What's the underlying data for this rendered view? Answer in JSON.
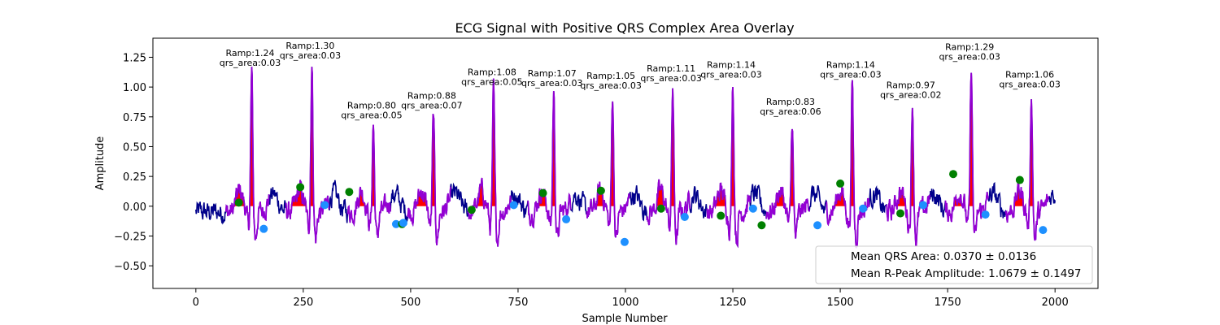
{
  "chart_data": {
    "type": "line",
    "title": "ECG Signal with Positive QRS Complex Area Overlay",
    "xlabel": "Sample Number",
    "ylabel": "Amplitude",
    "xlim": [
      -100,
      2100
    ],
    "ylim": [
      -0.69,
      1.41
    ],
    "xticks": [
      0,
      250,
      500,
      750,
      1000,
      1250,
      1500,
      1750,
      2000
    ],
    "yticks": [
      -0.5,
      -0.25,
      0.0,
      0.25,
      0.5,
      0.75,
      1.0,
      1.25
    ],
    "ytick_labels": [
      "−0.50",
      "−0.25",
      "0.00",
      "0.25",
      "0.50",
      "0.75",
      "1.00",
      "1.25"
    ],
    "colors": {
      "signal": "#00008b",
      "qrs_segment": "#9400d3",
      "area_fill": "#ff0000",
      "q_marker": "#008000",
      "s_marker": "#1e90ff"
    },
    "beats": [
      {
        "r_x": 130,
        "r_amp": 1.24,
        "q": [
          100,
          0.03
        ],
        "s": [
          158,
          -0.19
        ],
        "qrs_area": 0.03,
        "ramp_label": "Ramp:1.24",
        "area_label": "qrs_area:0.03"
      },
      {
        "r_x": 270,
        "r_amp": 1.3,
        "q": [
          243,
          0.16
        ],
        "s": [
          300,
          0.01
        ],
        "qrs_area": 0.03,
        "ramp_label": "Ramp:1.30",
        "area_label": "qrs_area:0.03"
      },
      {
        "r_x": 413,
        "r_amp": 0.8,
        "q": [
          357,
          0.12
        ],
        "s": [
          466,
          -0.15
        ],
        "qrs_area": 0.05,
        "ramp_label": "Ramp:0.80",
        "area_label": "qrs_area:0.05"
      },
      {
        "r_x": 553,
        "r_amp": 0.88,
        "q": [
          480,
          -0.15
        ],
        "s": [
          483,
          -0.14
        ],
        "qrs_area": 0.07,
        "ramp_label": "Ramp:0.88",
        "area_label": "qrs_area:0.07"
      },
      {
        "r_x": 693,
        "r_amp": 1.08,
        "q": [
          642,
          -0.03
        ],
        "s": [
          740,
          0.01
        ],
        "qrs_area": 0.05,
        "ramp_label": "Ramp:1.08",
        "area_label": "qrs_area:0.05"
      },
      {
        "r_x": 833,
        "r_amp": 1.07,
        "q": [
          808,
          0.11
        ],
        "s": [
          862,
          -0.11
        ],
        "qrs_area": 0.03,
        "ramp_label": "Ramp:1.07",
        "area_label": "qrs_area:0.03"
      },
      {
        "r_x": 970,
        "r_amp": 1.05,
        "q": [
          943,
          0.13
        ],
        "s": [
          998,
          -0.3
        ],
        "qrs_area": 0.03,
        "ramp_label": "Ramp:1.05",
        "area_label": "qrs_area:0.03"
      },
      {
        "r_x": 1110,
        "r_amp": 1.11,
        "q": [
          1083,
          -0.02
        ],
        "s": [
          1138,
          -0.09
        ],
        "qrs_area": 0.03,
        "ramp_label": "Ramp:1.11",
        "area_label": "qrs_area:0.03"
      },
      {
        "r_x": 1250,
        "r_amp": 1.14,
        "q": [
          1222,
          -0.08
        ],
        "s": [
          1297,
          -0.02
        ],
        "qrs_area": 0.03,
        "ramp_label": "Ramp:1.14",
        "area_label": "qrs_area:0.03"
      },
      {
        "r_x": 1388,
        "r_amp": 0.83,
        "q": [
          1317,
          -0.16
        ],
        "s": [
          1447,
          -0.16
        ],
        "qrs_area": 0.06,
        "ramp_label": "Ramp:0.83",
        "area_label": "qrs_area:0.06"
      },
      {
        "r_x": 1528,
        "r_amp": 1.14,
        "q": [
          1500,
          0.19
        ],
        "s": [
          1553,
          -0.02
        ],
        "qrs_area": 0.03,
        "ramp_label": "Ramp:1.14",
        "area_label": "qrs_area:0.03"
      },
      {
        "r_x": 1668,
        "r_amp": 0.97,
        "q": [
          1640,
          -0.06
        ],
        "s": [
          1693,
          0.01
        ],
        "qrs_area": 0.02,
        "ramp_label": "Ramp:0.97",
        "area_label": "qrs_area:0.02"
      },
      {
        "r_x": 1805,
        "r_amp": 1.29,
        "q": [
          1763,
          0.27
        ],
        "s": [
          1838,
          -0.07
        ],
        "qrs_area": 0.03,
        "ramp_label": "Ramp:1.29",
        "area_label": "qrs_area:0.03"
      },
      {
        "r_x": 1945,
        "r_amp": 1.06,
        "q": [
          1918,
          0.22
        ],
        "s": [
          1972,
          -0.2
        ],
        "qrs_area": 0.03,
        "ramp_label": "Ramp:1.06",
        "area_label": "qrs_area:0.03"
      }
    ],
    "legend": {
      "placement": "lower right",
      "entries": [
        "Mean QRS Area: 0.0370 ± 0.0136",
        "Mean R-Peak Amplitude: 1.0679 ± 0.1497"
      ]
    }
  }
}
